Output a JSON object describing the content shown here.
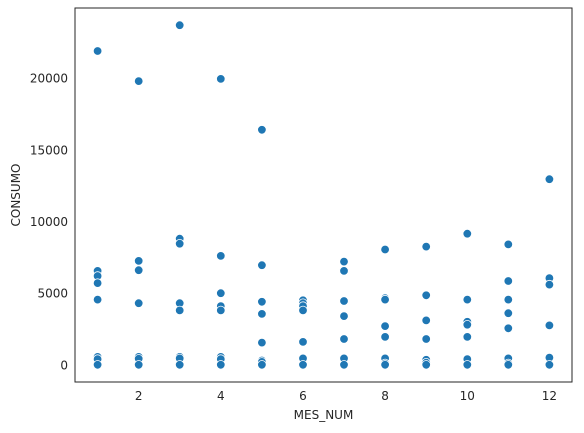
{
  "chart_data": {
    "type": "scatter",
    "title": "",
    "xlabel": "MES_NUM",
    "ylabel": "CONSUMO",
    "xlim": [
      0.45,
      12.55
    ],
    "ylim": [
      -1200,
      24900
    ],
    "xticks": [
      2,
      4,
      6,
      8,
      10,
      12
    ],
    "yticks": [
      0,
      5000,
      10000,
      15000,
      20000
    ],
    "grid": false,
    "legend": "none",
    "marker_color": "#1f77b4",
    "points": [
      {
        "x": 1,
        "y": 21900
      },
      {
        "x": 1,
        "y": 6550
      },
      {
        "x": 1,
        "y": 6200
      },
      {
        "x": 1,
        "y": 5700
      },
      {
        "x": 1,
        "y": 4550
      },
      {
        "x": 1,
        "y": 550
      },
      {
        "x": 1,
        "y": 400
      },
      {
        "x": 1,
        "y": 0
      },
      {
        "x": 2,
        "y": 19800
      },
      {
        "x": 2,
        "y": 7250
      },
      {
        "x": 2,
        "y": 6600
      },
      {
        "x": 2,
        "y": 4300
      },
      {
        "x": 2,
        "y": 550
      },
      {
        "x": 2,
        "y": 420
      },
      {
        "x": 2,
        "y": 0
      },
      {
        "x": 3,
        "y": 23700
      },
      {
        "x": 3,
        "y": 8800
      },
      {
        "x": 3,
        "y": 8450
      },
      {
        "x": 3,
        "y": 4300
      },
      {
        "x": 3,
        "y": 3800
      },
      {
        "x": 3,
        "y": 550
      },
      {
        "x": 3,
        "y": 450
      },
      {
        "x": 3,
        "y": 0
      },
      {
        "x": 4,
        "y": 19950
      },
      {
        "x": 4,
        "y": 7600
      },
      {
        "x": 4,
        "y": 5000
      },
      {
        "x": 4,
        "y": 4100
      },
      {
        "x": 4,
        "y": 3800
      },
      {
        "x": 4,
        "y": 550
      },
      {
        "x": 4,
        "y": 400
      },
      {
        "x": 4,
        "y": 0
      },
      {
        "x": 5,
        "y": 16400
      },
      {
        "x": 5,
        "y": 6950
      },
      {
        "x": 5,
        "y": 4400
      },
      {
        "x": 5,
        "y": 3550
      },
      {
        "x": 5,
        "y": 1550
      },
      {
        "x": 5,
        "y": 300
      },
      {
        "x": 5,
        "y": 200
      },
      {
        "x": 5,
        "y": 0
      },
      {
        "x": 6,
        "y": 4500
      },
      {
        "x": 6,
        "y": 4300
      },
      {
        "x": 6,
        "y": 4100
      },
      {
        "x": 6,
        "y": 3800
      },
      {
        "x": 6,
        "y": 1600
      },
      {
        "x": 6,
        "y": 450
      },
      {
        "x": 6,
        "y": 0
      },
      {
        "x": 7,
        "y": 7200
      },
      {
        "x": 7,
        "y": 6550
      },
      {
        "x": 7,
        "y": 4450
      },
      {
        "x": 7,
        "y": 3400
      },
      {
        "x": 7,
        "y": 1800
      },
      {
        "x": 7,
        "y": 450
      },
      {
        "x": 7,
        "y": 0
      },
      {
        "x": 8,
        "y": 8050
      },
      {
        "x": 8,
        "y": 4650
      },
      {
        "x": 8,
        "y": 4550
      },
      {
        "x": 8,
        "y": 2700
      },
      {
        "x": 8,
        "y": 1950
      },
      {
        "x": 8,
        "y": 450
      },
      {
        "x": 8,
        "y": 100
      },
      {
        "x": 8,
        "y": 0
      },
      {
        "x": 9,
        "y": 8250
      },
      {
        "x": 9,
        "y": 4850
      },
      {
        "x": 9,
        "y": 3100
      },
      {
        "x": 9,
        "y": 1800
      },
      {
        "x": 9,
        "y": 350
      },
      {
        "x": 9,
        "y": 150
      },
      {
        "x": 9,
        "y": 0
      },
      {
        "x": 10,
        "y": 9150
      },
      {
        "x": 10,
        "y": 4550
      },
      {
        "x": 10,
        "y": 3000
      },
      {
        "x": 10,
        "y": 2800
      },
      {
        "x": 10,
        "y": 1950
      },
      {
        "x": 10,
        "y": 400
      },
      {
        "x": 10,
        "y": 0
      },
      {
        "x": 11,
        "y": 8400
      },
      {
        "x": 11,
        "y": 5850
      },
      {
        "x": 11,
        "y": 4550
      },
      {
        "x": 11,
        "y": 3600
      },
      {
        "x": 11,
        "y": 2550
      },
      {
        "x": 11,
        "y": 450
      },
      {
        "x": 11,
        "y": 100
      },
      {
        "x": 11,
        "y": 0
      },
      {
        "x": 12,
        "y": 12950
      },
      {
        "x": 12,
        "y": 6050
      },
      {
        "x": 12,
        "y": 5600
      },
      {
        "x": 12,
        "y": 2750
      },
      {
        "x": 12,
        "y": 500
      },
      {
        "x": 12,
        "y": 0
      }
    ]
  }
}
